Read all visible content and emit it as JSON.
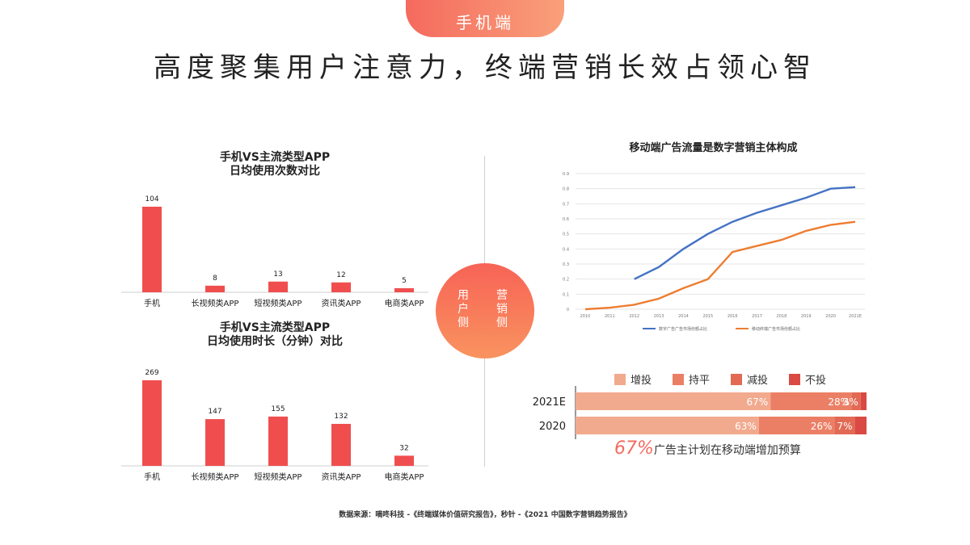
{
  "tab_label": "手机端",
  "page_title": "高度聚集用户注意力，终端营销长效占领心智",
  "center": {
    "left_label": "用户侧",
    "right_label": "营销侧"
  },
  "colors": {
    "accent": "#f04e4e",
    "blue": "#4472c4",
    "orange": "#ed7d31",
    "s1": "#f2aa8e",
    "s2": "#eb7f65",
    "s3": "#e26a55",
    "s4": "#d94a44"
  },
  "chart_data": [
    {
      "type": "bar",
      "title": "手机VS主流类型APP\n日均使用次数对比",
      "categories": [
        "手机",
        "长视频类APP",
        "短视频类APP",
        "资讯类APP",
        "电商类APP"
      ],
      "values": [
        104,
        8,
        13,
        12,
        5
      ],
      "ylim": [
        0,
        104
      ]
    },
    {
      "type": "bar",
      "title": "手机VS主流类型APP\n日均使用时长（分钟）对比",
      "categories": [
        "手机",
        "长视频类APP",
        "短视频类APP",
        "资讯类APP",
        "电商类APP"
      ],
      "values": [
        269,
        147,
        155,
        132,
        32
      ],
      "ylim": [
        0,
        269
      ]
    },
    {
      "type": "line",
      "title": "移动端广告流量是数字营销主体构成",
      "x": [
        "2010",
        "2011",
        "2012",
        "2013",
        "2014",
        "2015",
        "2016",
        "2017",
        "2018",
        "2019",
        "2020",
        "2021E"
      ],
      "ylim": [
        0,
        0.9
      ],
      "yticks": [
        "0",
        "0.1",
        "0.2",
        "0.3",
        "0.4",
        "0.5",
        "0.6",
        "0.7",
        "0.8",
        "0.9"
      ],
      "series": [
        {
          "name": "数字广告广告市场份额占比",
          "values": [
            null,
            null,
            0.2,
            0.28,
            0.4,
            0.5,
            0.58,
            0.64,
            0.69,
            0.74,
            0.8,
            0.81
          ]
        },
        {
          "name": "移动终端广告市场份额占比",
          "values": [
            0.0,
            0.01,
            0.03,
            0.07,
            0.14,
            0.2,
            0.38,
            0.42,
            0.46,
            0.52,
            0.56,
            0.58
          ]
        }
      ],
      "grid": true,
      "legend": "bottom"
    },
    {
      "type": "bar",
      "orientation": "horizontal-stacked",
      "categories": [
        "2021E",
        "2020"
      ],
      "legend_labels": [
        "增投",
        "持平",
        "减投",
        "不投"
      ],
      "series": [
        {
          "name": "增投",
          "values": [
            67,
            63
          ],
          "labels": [
            "67%",
            "63%"
          ]
        },
        {
          "name": "持平",
          "values": [
            28,
            26
          ],
          "labels": [
            "28%",
            "26%"
          ]
        },
        {
          "name": "减投",
          "values": [
            3,
            7
          ],
          "labels": [
            "3%",
            "7%"
          ]
        },
        {
          "name": "不投",
          "values": [
            2,
            4
          ],
          "labels": [
            "",
            ""
          ]
        }
      ],
      "note_value": "67%",
      "note_text": "广告主计划在移动端增加预算"
    }
  ],
  "source": "数据来源：嘀咚科技 -《终端媒体价值研究报告》，秒针 -《2021 中国数字营销趋势报告》"
}
